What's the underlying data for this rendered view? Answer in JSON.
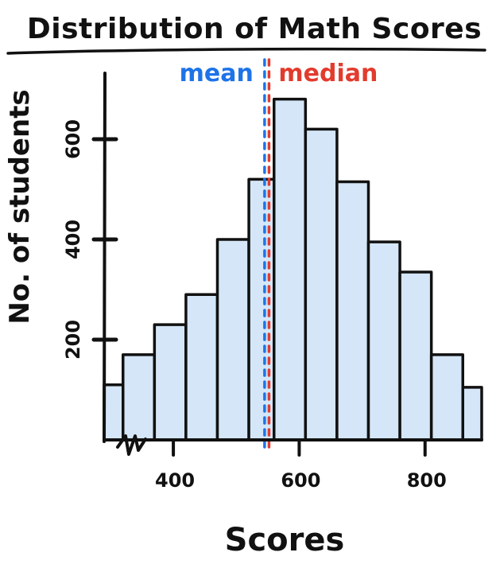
{
  "colors": {
    "bar_fill": "#d4e6f7",
    "bar_stroke": "#111111",
    "mean": "#1e73e8",
    "median": "#e23b2e",
    "ink": "#111111"
  },
  "chart_data": {
    "type": "bar",
    "title": "Distribution of Math Scores",
    "xlabel": "Scores",
    "ylabel": "No. of students",
    "xlim": [
      290,
      890
    ],
    "ylim": [
      0,
      700
    ],
    "xticks": [
      400,
      600,
      800
    ],
    "xtick_labels": [
      "400",
      "600",
      "800"
    ],
    "yticks": [
      200,
      400,
      600
    ],
    "ytick_labels": [
      "200",
      "400",
      "600"
    ],
    "axis_break": true,
    "grid": false,
    "bins": [
      {
        "x0": 290,
        "x1": 320,
        "value": 110
      },
      {
        "x0": 320,
        "x1": 370,
        "value": 170
      },
      {
        "x0": 370,
        "x1": 420,
        "value": 230
      },
      {
        "x0": 420,
        "x1": 470,
        "value": 290
      },
      {
        "x0": 470,
        "x1": 520,
        "value": 400
      },
      {
        "x0": 520,
        "x1": 560,
        "value": 520
      },
      {
        "x0": 560,
        "x1": 610,
        "value": 680
      },
      {
        "x0": 610,
        "x1": 660,
        "value": 620
      },
      {
        "x0": 660,
        "x1": 710,
        "value": 515
      },
      {
        "x0": 710,
        "x1": 760,
        "value": 395
      },
      {
        "x0": 760,
        "x1": 810,
        "value": 335
      },
      {
        "x0": 810,
        "x1": 860,
        "value": 170
      },
      {
        "x0": 860,
        "x1": 890,
        "value": 105
      }
    ],
    "reference_lines": [
      {
        "label": "mean",
        "x": 545,
        "color_key": "mean"
      },
      {
        "label": "median",
        "x": 552,
        "color_key": "median"
      }
    ]
  }
}
